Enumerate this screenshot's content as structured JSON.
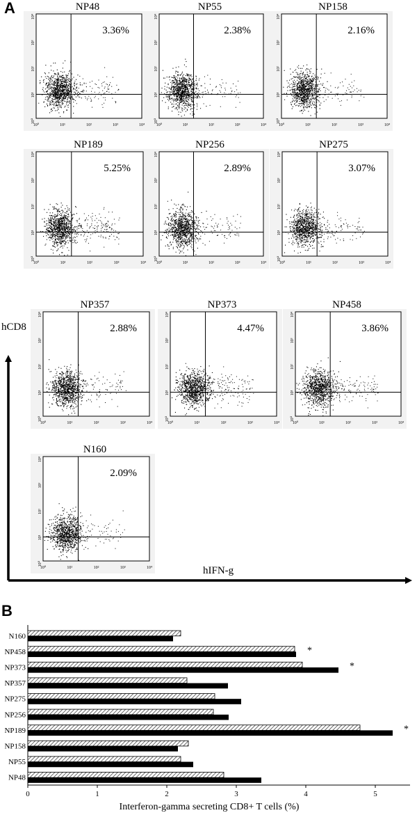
{
  "panel_a_label": "A",
  "panel_b_label": "B",
  "flow_axes": {
    "y_label": "hCD8",
    "x_label": "hIFN-g",
    "decade_ticks": [
      "10⁰",
      "10¹",
      "10²",
      "10³",
      "10⁴"
    ]
  },
  "chart_data": [
    {
      "type": "scatter",
      "panel": "A",
      "description_of_axes": "log-scale dot plots, x = hIFN-g, y = hCD8, quadrant gates",
      "xlabel": "hIFN-g",
      "ylabel": "hCD8",
      "xscale": "log",
      "yscale": "log",
      "xlim": [
        1,
        10000
      ],
      "ylim": [
        1,
        10000
      ],
      "tick_labels": [
        "10⁰",
        "10¹",
        "10²",
        "10³",
        "10⁴"
      ],
      "plots": [
        {
          "name": "NP48",
          "upper_right_percent": "3.36%",
          "value": 3.36
        },
        {
          "name": "NP55",
          "upper_right_percent": "2.38%",
          "value": 2.38
        },
        {
          "name": "NP158",
          "upper_right_percent": "2.16%",
          "value": 2.16
        },
        {
          "name": "NP189",
          "upper_right_percent": "5.25%",
          "value": 5.25
        },
        {
          "name": "NP256",
          "upper_right_percent": "2.89%",
          "value": 2.89
        },
        {
          "name": "NP275",
          "upper_right_percent": "3.07%",
          "value": 3.07
        },
        {
          "name": "NP357",
          "upper_right_percent": "2.88%",
          "value": 2.88
        },
        {
          "name": "NP373",
          "upper_right_percent": "4.47%",
          "value": 4.47
        },
        {
          "name": "NP458",
          "upper_right_percent": "3.86%",
          "value": 3.86
        },
        {
          "name": "N160",
          "upper_right_percent": "2.09%",
          "value": 2.09
        }
      ]
    },
    {
      "type": "bar",
      "panel": "B",
      "orientation": "horizontal",
      "categories": [
        "N160",
        "NP458",
        "NP373",
        "NP357",
        "NP275",
        "NP256",
        "NP189",
        "NP158",
        "NP55",
        "NP48"
      ],
      "series": [
        {
          "style": "hatched",
          "color": "#ffffff",
          "values": [
            2.2,
            3.84,
            3.95,
            2.29,
            2.69,
            2.67,
            4.78,
            2.31,
            2.2,
            2.82
          ]
        },
        {
          "style": "solid",
          "color": "#000000",
          "values": [
            2.09,
            3.86,
            4.47,
            2.88,
            3.07,
            2.89,
            5.25,
            2.16,
            2.38,
            3.36
          ]
        }
      ],
      "significance_marks": [
        {
          "category": "NP458",
          "label": "*"
        },
        {
          "category": "NP373",
          "label": "*"
        },
        {
          "category": "NP189",
          "label": "*"
        }
      ],
      "xlabel": "Interferon-gamma secreting CD8+ T cells (%)",
      "xlim": [
        0,
        5.5
      ],
      "xticks": [
        0,
        1,
        2,
        3,
        4,
        5
      ],
      "grid": false,
      "legend": "none"
    }
  ]
}
